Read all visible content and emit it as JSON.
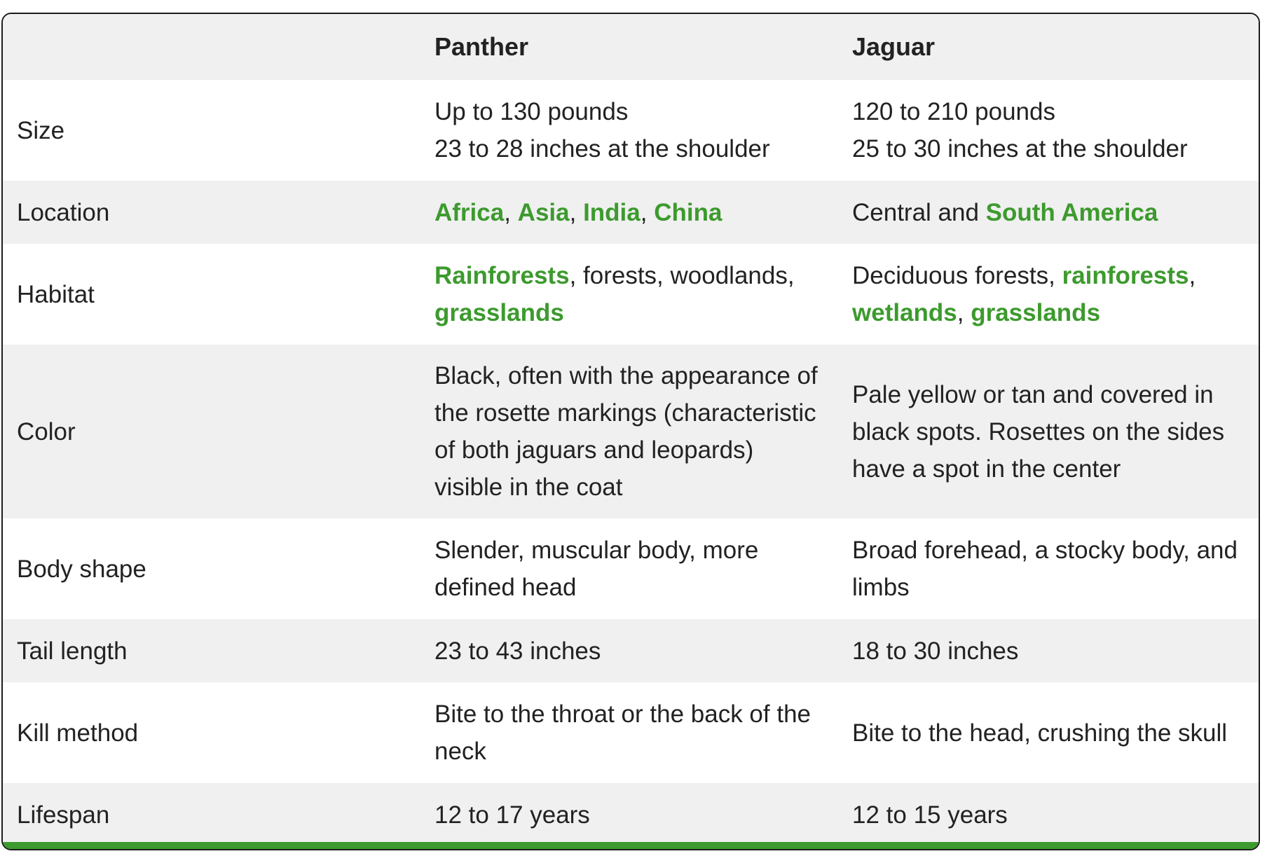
{
  "table": {
    "headers": [
      "",
      "Panther",
      "Jaguar"
    ],
    "rows": [
      {
        "label": "Size",
        "panther": [
          "Up to 130 pounds",
          "23 to 28 inches at the shoulder"
        ],
        "jaguar": [
          "120 to 210 pounds",
          "25 to 30 inches at the shoulder"
        ]
      },
      {
        "label": "Location",
        "panther": {
          "links": [
            "Africa",
            "Asia",
            "India",
            "China"
          ],
          "separator": ", "
        },
        "jaguar": {
          "text": "Central and ",
          "link": "South America"
        }
      },
      {
        "label": "Habitat",
        "panther": {
          "link1": "Rainforests",
          "text1": ", forests, woodlands, ",
          "link2": "grasslands"
        },
        "jaguar": {
          "text1": "Deciduous forests, ",
          "link1": "rainforests",
          "text2": ", ",
          "link2": "wetlands",
          "text3": ", ",
          "link3": "grasslands"
        }
      },
      {
        "label": "Color",
        "panther": "Black, often with the appearance of the rosette markings (characteristic of both jaguars and leopards) visible in the coat",
        "jaguar": "Pale yellow or tan and covered in black spots. Rosettes on the sides have a spot in the center"
      },
      {
        "label": "Body shape",
        "panther": "Slender, muscular body, more defined head",
        "jaguar": "Broad forehead, a stocky body, and limbs"
      },
      {
        "label": "Tail length",
        "panther": "23 to 43 inches",
        "jaguar": "18 to 30 inches"
      },
      {
        "label": "Kill method",
        "panther": "Bite to the throat or the back of the neck",
        "jaguar": "Bite to the head, crushing the skull"
      },
      {
        "label": "Lifespan",
        "panther": "12 to 17 years",
        "jaguar": "12 to 15 years"
      }
    ]
  },
  "colors": {
    "link": "#3d9a2e",
    "stripe": "#f0f0f0",
    "accent_bar": "#3d9a2e",
    "border": "#1c1c1c"
  }
}
